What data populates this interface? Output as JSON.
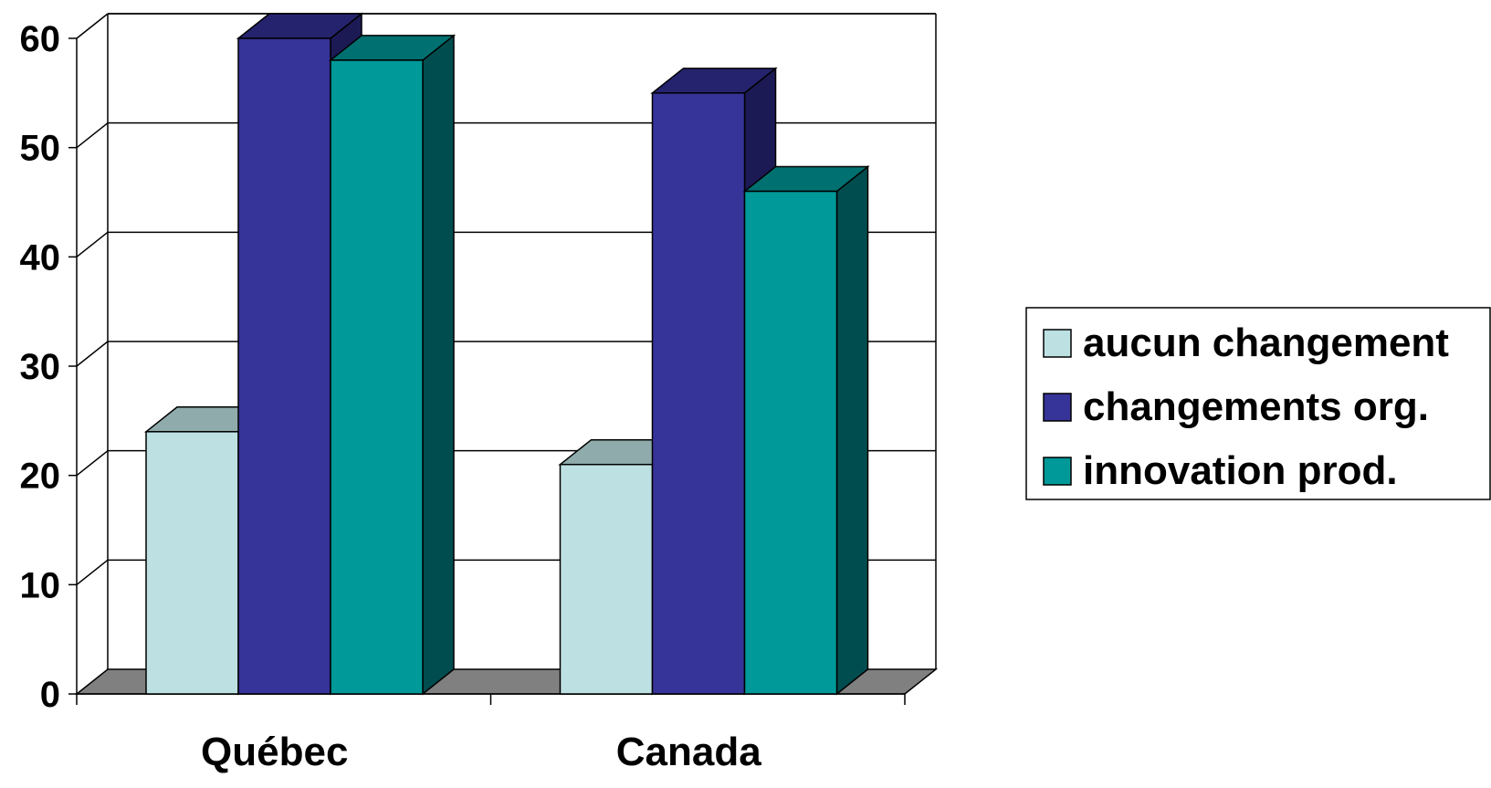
{
  "chart_data": {
    "type": "bar",
    "categories": [
      "Québec",
      "Canada"
    ],
    "series": [
      {
        "name": "aucun changement",
        "values": [
          24,
          21
        ]
      },
      {
        "name": "changements org.",
        "values": [
          60,
          55
        ]
      },
      {
        "name": "innovation prod.",
        "values": [
          58,
          46
        ]
      }
    ],
    "ylim": [
      0,
      60
    ],
    "yticks": [
      0,
      10,
      20,
      30,
      40,
      50,
      60
    ],
    "ytick_labels": [
      "0",
      "10",
      "20",
      "30",
      "40",
      "50",
      "60"
    ],
    "title": "",
    "xlabel": "",
    "ylabel": "",
    "grid": true,
    "legend_position": "right",
    "style": "3d-clustered-bar",
    "colors": {
      "series": [
        {
          "front": "#bde0e3",
          "side": "#7fa3a6",
          "top": "#8fabac"
        },
        {
          "front": "#363399",
          "side": "#1c1a55",
          "top": "#25236e"
        },
        {
          "front": "#009999",
          "side": "#004d4f",
          "top": "#007070"
        }
      ],
      "floor": "#808080",
      "grid": "#000000"
    }
  }
}
